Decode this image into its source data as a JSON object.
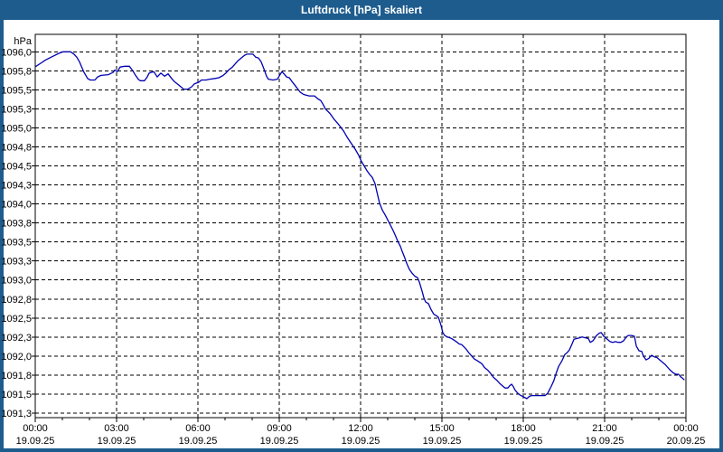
{
  "window": {
    "title": "Luftdruck [hPa] skaliert"
  },
  "colors": {
    "frame": "#1e5c8e",
    "title_text": "#ffffff",
    "background": "#ffffff",
    "grid": "#000000",
    "axis": "#000000",
    "label_text": "#000000",
    "curve": "#0000b2"
  },
  "chart_data": {
    "type": "line",
    "title": "Luftdruck [hPa] skaliert",
    "ylabel": "hPa",
    "xlabel": "",
    "grid": "dashed-both",
    "legend": "none",
    "x_axis": {
      "xlim_hours": [
        0,
        24
      ],
      "major_tick_interval_hours": 3,
      "minor_tick_interval_hours": 1,
      "ticks": [
        {
          "hour": 0,
          "time": "00:00",
          "date": "19.09.25"
        },
        {
          "hour": 3,
          "time": "03:00",
          "date": "19.09.25"
        },
        {
          "hour": 6,
          "time": "06:00",
          "date": "19.09.25"
        },
        {
          "hour": 9,
          "time": "09:00",
          "date": "19.09.25"
        },
        {
          "hour": 12,
          "time": "12:00",
          "date": "19.09.25"
        },
        {
          "hour": 15,
          "time": "15:00",
          "date": "19.09.25"
        },
        {
          "hour": 18,
          "time": "18:00",
          "date": "19.09.25"
        },
        {
          "hour": 21,
          "time": "21:00",
          "date": "19.09.25"
        },
        {
          "hour": 24,
          "time": "00:00",
          "date": "20.09.25"
        }
      ]
    },
    "y_axis": {
      "unit": "hPa",
      "ylim": [
        1091.19,
        1096.23
      ],
      "ticks": [
        {
          "value": 1096.0,
          "label": "1096,0"
        },
        {
          "value": 1095.75,
          "label": "1095,8"
        },
        {
          "value": 1095.5,
          "label": "1095,5"
        },
        {
          "value": 1095.25,
          "label": "1095,3"
        },
        {
          "value": 1095.0,
          "label": "1095,0"
        },
        {
          "value": 1094.75,
          "label": "1094,8"
        },
        {
          "value": 1094.5,
          "label": "1094,5"
        },
        {
          "value": 1094.25,
          "label": "1094,3"
        },
        {
          "value": 1094.0,
          "label": "1094,0"
        },
        {
          "value": 1093.75,
          "label": "1093,8"
        },
        {
          "value": 1093.5,
          "label": "1093,5"
        },
        {
          "value": 1093.25,
          "label": "1093,3"
        },
        {
          "value": 1093.0,
          "label": "1093,0"
        },
        {
          "value": 1092.75,
          "label": "1092,8"
        },
        {
          "value": 1092.5,
          "label": "1092,5"
        },
        {
          "value": 1092.25,
          "label": "1092,3"
        },
        {
          "value": 1092.0,
          "label": "1092,0"
        },
        {
          "value": 1091.75,
          "label": "1091,8"
        },
        {
          "value": 1091.5,
          "label": "1091,5"
        },
        {
          "value": 1091.25,
          "label": "1091,3"
        }
      ]
    },
    "series": [
      {
        "name": "Luftdruck",
        "color": "#0000b2",
        "points_hour_hpa": [
          [
            0.03,
            1095.81
          ],
          [
            0.2,
            1095.85
          ],
          [
            0.37,
            1095.89
          ],
          [
            0.53,
            1095.92
          ],
          [
            0.7,
            1095.95
          ],
          [
            0.87,
            1095.98
          ],
          [
            1.03,
            1096.0
          ],
          [
            1.3,
            1096.0
          ],
          [
            1.43,
            1095.97
          ],
          [
            1.53,
            1095.93
          ],
          [
            1.63,
            1095.87
          ],
          [
            1.7,
            1095.81
          ],
          [
            1.8,
            1095.73
          ],
          [
            1.93,
            1095.65
          ],
          [
            2.03,
            1095.63
          ],
          [
            2.2,
            1095.63
          ],
          [
            2.3,
            1095.67
          ],
          [
            2.43,
            1095.69
          ],
          [
            2.7,
            1095.7
          ],
          [
            2.87,
            1095.73
          ],
          [
            2.93,
            1095.76
          ],
          [
            3.03,
            1095.74
          ],
          [
            3.13,
            1095.8
          ],
          [
            3.3,
            1095.81
          ],
          [
            3.47,
            1095.81
          ],
          [
            3.6,
            1095.75
          ],
          [
            3.7,
            1095.69
          ],
          [
            3.8,
            1095.64
          ],
          [
            3.87,
            1095.62
          ],
          [
            4.03,
            1095.62
          ],
          [
            4.13,
            1095.67
          ],
          [
            4.2,
            1095.72
          ],
          [
            4.37,
            1095.74
          ],
          [
            4.5,
            1095.67
          ],
          [
            4.63,
            1095.72
          ],
          [
            4.77,
            1095.68
          ],
          [
            4.9,
            1095.71
          ],
          [
            5.03,
            1095.65
          ],
          [
            5.13,
            1095.61
          ],
          [
            5.27,
            1095.57
          ],
          [
            5.37,
            1095.54
          ],
          [
            5.47,
            1095.51
          ],
          [
            5.63,
            1095.51
          ],
          [
            5.77,
            1095.54
          ],
          [
            5.87,
            1095.58
          ],
          [
            6.03,
            1095.6
          ],
          [
            6.13,
            1095.63
          ],
          [
            6.3,
            1095.63
          ],
          [
            6.43,
            1095.64
          ],
          [
            6.63,
            1095.65
          ],
          [
            6.77,
            1095.66
          ],
          [
            6.93,
            1095.69
          ],
          [
            7.03,
            1095.72
          ],
          [
            7.13,
            1095.76
          ],
          [
            7.27,
            1095.8
          ],
          [
            7.37,
            1095.84
          ],
          [
            7.47,
            1095.88
          ],
          [
            7.6,
            1095.92
          ],
          [
            7.7,
            1095.95
          ],
          [
            7.8,
            1095.97
          ],
          [
            7.97,
            1095.97
          ],
          [
            8.03,
            1095.97
          ],
          [
            8.13,
            1095.93
          ],
          [
            8.23,
            1095.92
          ],
          [
            8.33,
            1095.87
          ],
          [
            8.43,
            1095.78
          ],
          [
            8.53,
            1095.68
          ],
          [
            8.6,
            1095.64
          ],
          [
            8.77,
            1095.63
          ],
          [
            8.93,
            1095.64
          ],
          [
            9.03,
            1095.7
          ],
          [
            9.1,
            1095.74
          ],
          [
            9.2,
            1095.7
          ],
          [
            9.27,
            1095.67
          ],
          [
            9.37,
            1095.66
          ],
          [
            9.47,
            1095.61
          ],
          [
            9.6,
            1095.55
          ],
          [
            9.77,
            1095.47
          ],
          [
            9.9,
            1095.44
          ],
          [
            10.1,
            1095.42
          ],
          [
            10.3,
            1095.42
          ],
          [
            10.43,
            1095.38
          ],
          [
            10.53,
            1095.36
          ],
          [
            10.63,
            1095.3
          ],
          [
            10.7,
            1095.25
          ],
          [
            10.87,
            1095.19
          ],
          [
            11.03,
            1095.11
          ],
          [
            11.2,
            1095.04
          ],
          [
            11.37,
            1094.96
          ],
          [
            11.5,
            1094.88
          ],
          [
            11.63,
            1094.81
          ],
          [
            11.8,
            1094.72
          ],
          [
            11.93,
            1094.64
          ],
          [
            12.03,
            1094.56
          ],
          [
            12.13,
            1094.5
          ],
          [
            12.23,
            1094.44
          ],
          [
            12.33,
            1094.39
          ],
          [
            12.43,
            1094.35
          ],
          [
            12.53,
            1094.27
          ],
          [
            12.6,
            1094.16
          ],
          [
            12.7,
            1094.01
          ],
          [
            12.8,
            1093.92
          ],
          [
            12.9,
            1093.86
          ],
          [
            13.03,
            1093.77
          ],
          [
            13.13,
            1093.7
          ],
          [
            13.2,
            1093.65
          ],
          [
            13.3,
            1093.57
          ],
          [
            13.37,
            1093.51
          ],
          [
            13.47,
            1093.44
          ],
          [
            13.53,
            1093.38
          ],
          [
            13.63,
            1093.29
          ],
          [
            13.7,
            1093.22
          ],
          [
            13.8,
            1093.14
          ],
          [
            13.9,
            1093.09
          ],
          [
            14.0,
            1093.05
          ],
          [
            14.1,
            1093.03
          ],
          [
            14.17,
            1092.97
          ],
          [
            14.27,
            1092.85
          ],
          [
            14.33,
            1092.77
          ],
          [
            14.4,
            1092.71
          ],
          [
            14.5,
            1092.69
          ],
          [
            14.6,
            1092.61
          ],
          [
            14.7,
            1092.55
          ],
          [
            14.8,
            1092.53
          ],
          [
            14.87,
            1092.51
          ],
          [
            14.97,
            1092.4
          ],
          [
            15.03,
            1092.31
          ],
          [
            15.1,
            1092.27
          ],
          [
            15.2,
            1092.25
          ],
          [
            15.3,
            1092.24
          ],
          [
            15.4,
            1092.22
          ],
          [
            15.53,
            1092.19
          ],
          [
            15.63,
            1092.16
          ],
          [
            15.73,
            1092.15
          ],
          [
            15.87,
            1092.1
          ],
          [
            16.0,
            1092.04
          ],
          [
            16.1,
            1092.0
          ],
          [
            16.2,
            1091.96
          ],
          [
            16.3,
            1091.94
          ],
          [
            16.47,
            1091.9
          ],
          [
            16.57,
            1091.85
          ],
          [
            16.7,
            1091.81
          ],
          [
            16.8,
            1091.77
          ],
          [
            16.9,
            1091.72
          ],
          [
            17.03,
            1091.68
          ],
          [
            17.13,
            1091.64
          ],
          [
            17.23,
            1091.61
          ],
          [
            17.33,
            1091.58
          ],
          [
            17.43,
            1091.58
          ],
          [
            17.5,
            1091.61
          ],
          [
            17.57,
            1091.63
          ],
          [
            17.63,
            1091.6
          ],
          [
            17.7,
            1091.55
          ],
          [
            17.8,
            1091.51
          ],
          [
            17.87,
            1091.49
          ],
          [
            17.97,
            1091.47
          ],
          [
            18.03,
            1091.46
          ],
          [
            18.13,
            1091.44
          ],
          [
            18.23,
            1091.47
          ],
          [
            18.3,
            1091.48
          ],
          [
            18.43,
            1091.48
          ],
          [
            18.57,
            1091.48
          ],
          [
            18.7,
            1091.48
          ],
          [
            18.8,
            1091.48
          ],
          [
            18.9,
            1091.51
          ],
          [
            18.97,
            1091.56
          ],
          [
            19.03,
            1091.6
          ],
          [
            19.13,
            1091.68
          ],
          [
            19.2,
            1091.76
          ],
          [
            19.3,
            1091.86
          ],
          [
            19.43,
            1091.94
          ],
          [
            19.53,
            1092.02
          ],
          [
            19.63,
            1092.05
          ],
          [
            19.7,
            1092.08
          ],
          [
            19.8,
            1092.16
          ],
          [
            19.87,
            1092.22
          ],
          [
            19.97,
            1092.23
          ],
          [
            20.07,
            1092.24
          ],
          [
            20.17,
            1092.25
          ],
          [
            20.3,
            1092.24
          ],
          [
            20.4,
            1092.23
          ],
          [
            20.47,
            1092.18
          ],
          [
            20.57,
            1092.2
          ],
          [
            20.63,
            1092.23
          ],
          [
            20.7,
            1092.27
          ],
          [
            20.8,
            1092.3
          ],
          [
            20.87,
            1092.31
          ],
          [
            20.97,
            1092.26
          ],
          [
            21.1,
            1092.22
          ],
          [
            21.2,
            1092.19
          ],
          [
            21.3,
            1092.18
          ],
          [
            21.4,
            1092.19
          ],
          [
            21.5,
            1092.18
          ],
          [
            21.6,
            1092.18
          ],
          [
            21.7,
            1092.2
          ],
          [
            21.8,
            1092.25
          ],
          [
            21.87,
            1092.27
          ],
          [
            22.0,
            1092.27
          ],
          [
            22.1,
            1092.26
          ],
          [
            22.17,
            1092.13
          ],
          [
            22.27,
            1092.07
          ],
          [
            22.37,
            1092.06
          ],
          [
            22.43,
            1092.0
          ],
          [
            22.53,
            1091.95
          ],
          [
            22.63,
            1091.97
          ],
          [
            22.73,
            1092.01
          ],
          [
            22.83,
            1091.99
          ],
          [
            22.93,
            1091.98
          ],
          [
            23.03,
            1091.95
          ],
          [
            23.13,
            1091.92
          ],
          [
            23.23,
            1091.89
          ],
          [
            23.33,
            1091.85
          ],
          [
            23.43,
            1091.81
          ],
          [
            23.53,
            1091.78
          ],
          [
            23.63,
            1091.76
          ],
          [
            23.73,
            1091.76
          ],
          [
            23.8,
            1091.73
          ],
          [
            23.87,
            1091.71
          ],
          [
            23.93,
            1091.69
          ]
        ]
      }
    ]
  }
}
